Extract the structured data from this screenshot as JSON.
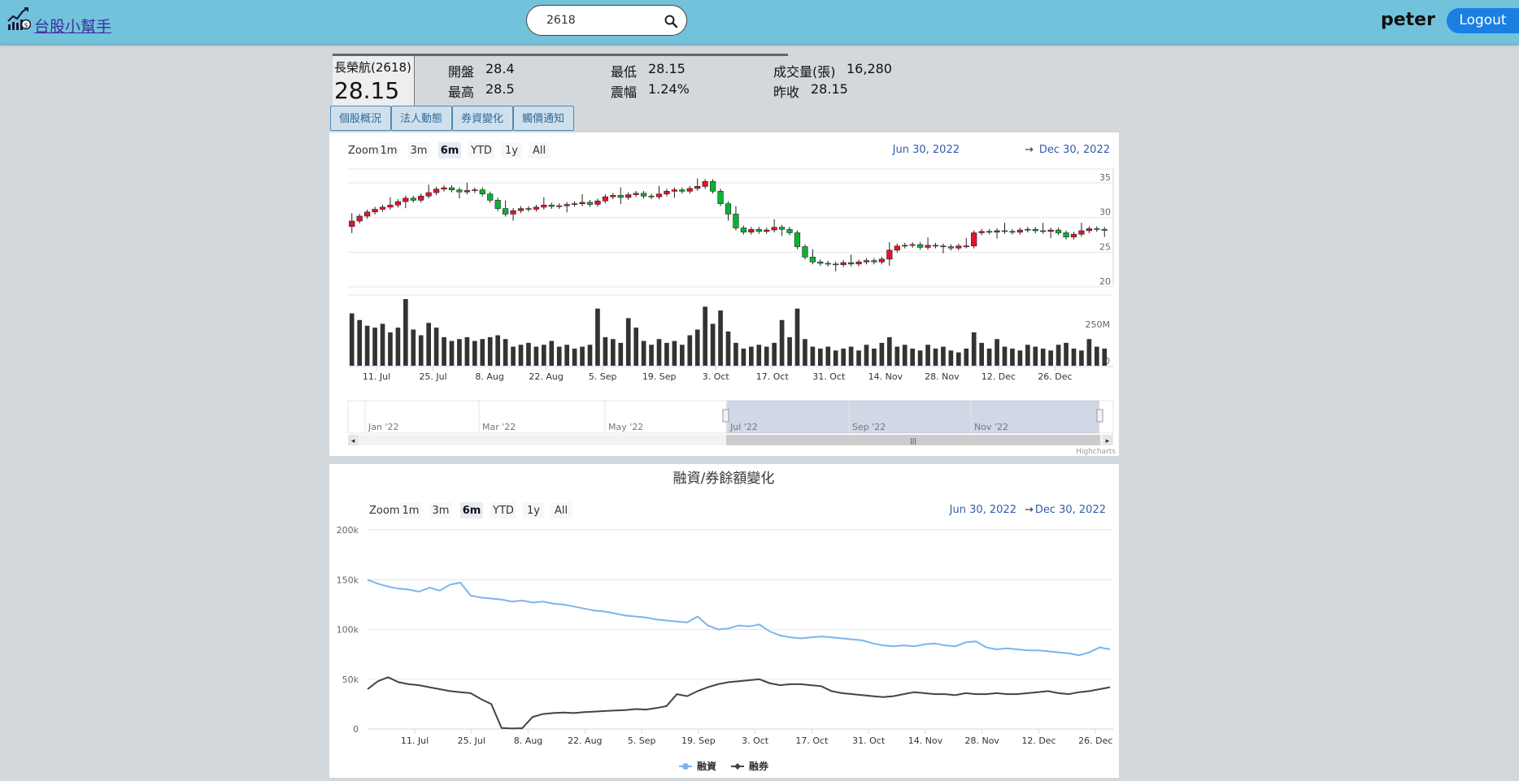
{
  "app": {
    "brand": "台股小幫手",
    "user": "peter",
    "logout_label": "Logout"
  },
  "search": {
    "value": "2618"
  },
  "quote": {
    "name": "長榮航(2618)",
    "price": "28.15",
    "fields": [
      {
        "label": "開盤",
        "value": "28.4"
      },
      {
        "label": "最高",
        "value": "28.5"
      },
      {
        "label": "最低",
        "value": "28.15"
      },
      {
        "label": "震幅",
        "value": "1.24%"
      },
      {
        "label": "成交量(張)",
        "value": "16,280"
      },
      {
        "label": "昨收",
        "value": "28.15"
      }
    ]
  },
  "tabs": [
    "個股概況",
    "法人動態",
    "券資變化",
    "觸價通知"
  ],
  "range_selector": {
    "zoom_label": "Zoom",
    "buttons": [
      "1m",
      "3m",
      "6m",
      "YTD",
      "1y",
      "All"
    ],
    "selected": "6m",
    "from": "Jun 30, 2022",
    "arrow": "→",
    "to": "Dec 30, 2022"
  },
  "credits": "Highcharts",
  "chart_data": [
    {
      "type": "candlestick",
      "x_ticks": [
        "11. Jul",
        "25. Jul",
        "8. Aug",
        "22. Aug",
        "5. Sep",
        "19. Sep",
        "3. Oct",
        "17. Oct",
        "31. Oct",
        "14. Nov",
        "28. Nov",
        "12. Dec",
        "26. Dec"
      ],
      "y_ticks": [
        "35",
        "30",
        "25",
        "20"
      ],
      "ylim": [
        20,
        37
      ],
      "price_close": [
        29.5,
        30.2,
        30.8,
        31.2,
        31.5,
        31.8,
        32.3,
        32.8,
        32.5,
        33.1,
        33.6,
        34.1,
        34.3,
        34.0,
        33.7,
        33.9,
        34.0,
        33.4,
        32.5,
        31.3,
        30.5,
        31.0,
        31.3,
        31.2,
        31.5,
        31.8,
        31.6,
        31.7,
        31.9,
        32.0,
        32.2,
        31.9,
        32.4,
        33.0,
        33.2,
        32.9,
        33.3,
        33.5,
        33.1,
        33.0,
        33.4,
        33.8,
        34.0,
        33.8,
        34.2,
        34.5,
        35.2,
        33.8,
        32.0,
        30.5,
        28.5,
        27.9,
        28.3,
        28.0,
        28.2,
        28.6,
        28.3,
        27.8,
        25.8,
        24.3,
        23.6,
        23.4,
        23.3,
        23.2,
        23.5,
        23.3,
        23.6,
        23.8,
        23.6,
        24.0,
        25.3,
        25.9,
        26.0,
        26.1,
        25.7,
        26.0,
        25.9,
        25.8,
        25.6,
        25.9,
        25.9,
        27.8,
        28.0,
        27.9,
        28.1,
        28.0,
        27.9,
        28.2,
        28.3,
        28.1,
        28.0,
        28.2,
        27.8,
        27.2,
        27.6,
        28.1,
        28.4,
        28.3,
        28.15
      ],
      "volume_label": "250M",
      "volume_zero": "0",
      "volume": [
        55,
        48,
        42,
        40,
        44,
        35,
        40,
        70,
        38,
        32,
        45,
        40,
        30,
        26,
        28,
        30,
        26,
        28,
        30,
        32,
        28,
        20,
        22,
        24,
        20,
        22,
        26,
        20,
        22,
        18,
        20,
        22,
        60,
        30,
        28,
        24,
        50,
        40,
        26,
        22,
        28,
        24,
        26,
        22,
        32,
        38,
        62,
        44,
        58,
        36,
        24,
        18,
        20,
        22,
        20,
        24,
        48,
        30,
        60,
        28,
        20,
        18,
        20,
        16,
        18,
        20,
        16,
        22,
        18,
        24,
        30,
        20,
        22,
        18,
        16,
        22,
        18,
        20,
        16,
        14,
        18,
        35,
        24,
        18,
        28,
        20,
        18,
        16,
        22,
        20,
        18,
        16,
        22,
        24,
        18,
        16,
        28,
        20,
        18
      ]
    },
    {
      "type": "line",
      "title": "融資/券餘額變化",
      "x_ticks": [
        "11. Jul",
        "25. Jul",
        "8. Aug",
        "22. Aug",
        "5. Sep",
        "19. Sep",
        "3. Oct",
        "17. Oct",
        "31. Oct",
        "14. Nov",
        "28. Nov",
        "12. Dec",
        "26. Dec"
      ],
      "y_ticks": [
        "200k",
        "150k",
        "100k",
        "50k",
        "0"
      ],
      "ylim": [
        0,
        200000
      ],
      "colors": {
        "margin": "#7cb5ec",
        "short": "#434348"
      },
      "series": [
        {
          "name": "融資",
          "values": [
            150000,
            146000,
            143000,
            141000,
            140000,
            138000,
            142000,
            139000,
            145000,
            147000,
            134000,
            132000,
            131000,
            130000,
            128000,
            129000,
            127000,
            128000,
            126000,
            125000,
            123000,
            121000,
            119000,
            118000,
            116000,
            114000,
            113000,
            112000,
            110000,
            109000,
            108000,
            107000,
            113000,
            104000,
            100000,
            101000,
            104000,
            103000,
            105000,
            98000,
            94000,
            92000,
            91000,
            92000,
            93000,
            92000,
            91000,
            90000,
            89000,
            86000,
            84000,
            83000,
            84000,
            83000,
            85000,
            86000,
            84000,
            83000,
            87000,
            88000,
            82000,
            80000,
            81000,
            80000,
            79000,
            79000,
            78000,
            77000,
            76000,
            74000,
            77000,
            82000,
            80000
          ]
        },
        {
          "name": "融券",
          "values": [
            40000,
            48000,
            52000,
            47000,
            45000,
            44000,
            42000,
            40000,
            38000,
            37000,
            36000,
            30000,
            25000,
            1000,
            500,
            800,
            12000,
            15000,
            16000,
            16500,
            16000,
            17000,
            17500,
            18000,
            18500,
            19000,
            20000,
            19500,
            21000,
            23000,
            35000,
            33000,
            38000,
            42000,
            45000,
            47000,
            48000,
            49000,
            50000,
            46000,
            44000,
            45000,
            45000,
            44000,
            43000,
            38000,
            36000,
            35000,
            34000,
            33000,
            32000,
            33000,
            35000,
            37000,
            36000,
            35000,
            35000,
            34000,
            36000,
            35000,
            35000,
            36000,
            35000,
            35000,
            36000,
            37000,
            38000,
            36000,
            35000,
            37000,
            38000,
            40000,
            42000
          ]
        }
      ]
    }
  ],
  "navigator": {
    "labels": [
      "Jan '22",
      "Mar '22",
      "May '22",
      "Jul '22",
      "Sep '22",
      "Nov '22"
    ]
  }
}
